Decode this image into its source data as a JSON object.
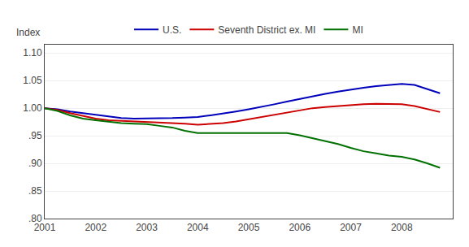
{
  "chart_data": {
    "type": "line",
    "ylabel": "Index",
    "x": [
      2001.0,
      2001.25,
      2001.5,
      2001.75,
      2002.0,
      2002.25,
      2002.5,
      2002.75,
      2003.0,
      2003.25,
      2003.5,
      2003.75,
      2004.0,
      2004.25,
      2004.5,
      2004.75,
      2005.0,
      2005.25,
      2005.5,
      2005.75,
      2006.0,
      2006.25,
      2006.5,
      2006.75,
      2007.0,
      2007.25,
      2007.5,
      2007.75,
      2008.0,
      2008.25,
      2008.5,
      2008.75
    ],
    "series": [
      {
        "name": "U.S.",
        "color": "#0000BB",
        "values": [
          1.0,
          0.998,
          0.994,
          0.991,
          0.987,
          0.984,
          0.982,
          0.981,
          0.981,
          0.981,
          0.982,
          0.983,
          0.984,
          0.987,
          0.99,
          0.994,
          0.998,
          1.002,
          1.007,
          1.012,
          1.017,
          1.021,
          1.026,
          1.03,
          1.034,
          1.037,
          1.04,
          1.042,
          1.044,
          1.042,
          1.035,
          1.027
        ]
      },
      {
        "name": "Seventh District ex. MI",
        "color": "#CC0000",
        "values": [
          1.0,
          0.997,
          0.991,
          0.986,
          0.981,
          0.978,
          0.977,
          0.976,
          0.976,
          0.975,
          0.974,
          0.972,
          0.97,
          0.971,
          0.973,
          0.976,
          0.98,
          0.984,
          0.988,
          0.992,
          0.996,
          1.0,
          1.002,
          1.004,
          1.006,
          1.007,
          1.008,
          1.008,
          1.007,
          1.004,
          0.999,
          0.993
        ]
      },
      {
        "name": "MI",
        "color": "#007000",
        "values": [
          1.0,
          0.995,
          0.987,
          0.981,
          0.978,
          0.975,
          0.973,
          0.972,
          0.971,
          0.968,
          0.965,
          0.959,
          0.955,
          0.955,
          0.955,
          0.956,
          0.956,
          0.956,
          0.956,
          0.955,
          0.951,
          0.946,
          0.94,
          0.935,
          0.928,
          0.922,
          0.918,
          0.914,
          0.912,
          0.907,
          0.9,
          0.892
        ]
      }
    ],
    "xlim": [
      2001,
      2009.0
    ],
    "ylim": [
      0.8,
      1.115
    ],
    "xticks": [
      2001,
      2002,
      2003,
      2004,
      2005,
      2006,
      2007,
      2008
    ],
    "yticks": [
      {
        "value": 0.8,
        "label": ".80"
      },
      {
        "value": 0.85,
        "label": ".85"
      },
      {
        "value": 0.9,
        "label": ".90"
      },
      {
        "value": 0.95,
        "label": ".95"
      },
      {
        "value": 1.0,
        "label": "1.00"
      },
      1.05,
      {
        "value": 1.1,
        "label": "1.10"
      }
    ],
    "grid": true,
    "legend": "top"
  }
}
